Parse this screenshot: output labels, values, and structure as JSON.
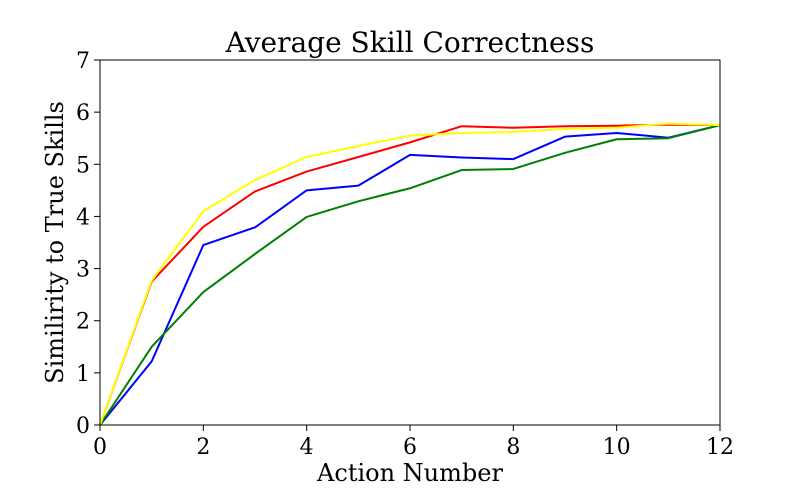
{
  "chart_data": {
    "type": "line",
    "title": "Average Skill Correctness",
    "xlabel": "Action Number",
    "ylabel": "Similirity to True Skills",
    "xlim": [
      0,
      12
    ],
    "ylim": [
      0,
      7
    ],
    "xticks": [
      0,
      2,
      4,
      6,
      8,
      10,
      12
    ],
    "yticks": [
      0,
      1,
      2,
      3,
      4,
      5,
      6,
      7
    ],
    "grid": false,
    "legend": "none",
    "x": [
      0,
      1,
      2,
      3,
      4,
      5,
      6,
      7,
      8,
      9,
      10,
      11,
      12
    ],
    "series": [
      {
        "color": "#ff0000",
        "values": [
          0,
          2.75,
          3.8,
          4.48,
          4.86,
          5.14,
          5.42,
          5.73,
          5.7,
          5.73,
          5.74,
          5.76,
          5.75
        ]
      },
      {
        "color": "#0000ff",
        "values": [
          0,
          1.22,
          3.45,
          3.79,
          4.5,
          4.59,
          5.18,
          5.13,
          5.1,
          5.53,
          5.6,
          5.51,
          5.75
        ]
      },
      {
        "color": "#008000",
        "values": [
          0,
          1.5,
          2.55,
          3.28,
          3.99,
          4.29,
          4.54,
          4.89,
          4.91,
          5.22,
          5.48,
          5.5,
          5.75
        ]
      },
      {
        "color": "#ffff00",
        "values": [
          0,
          2.77,
          4.1,
          4.7,
          5.14,
          5.35,
          5.55,
          5.6,
          5.62,
          5.68,
          5.7,
          5.78,
          5.75
        ]
      }
    ]
  }
}
